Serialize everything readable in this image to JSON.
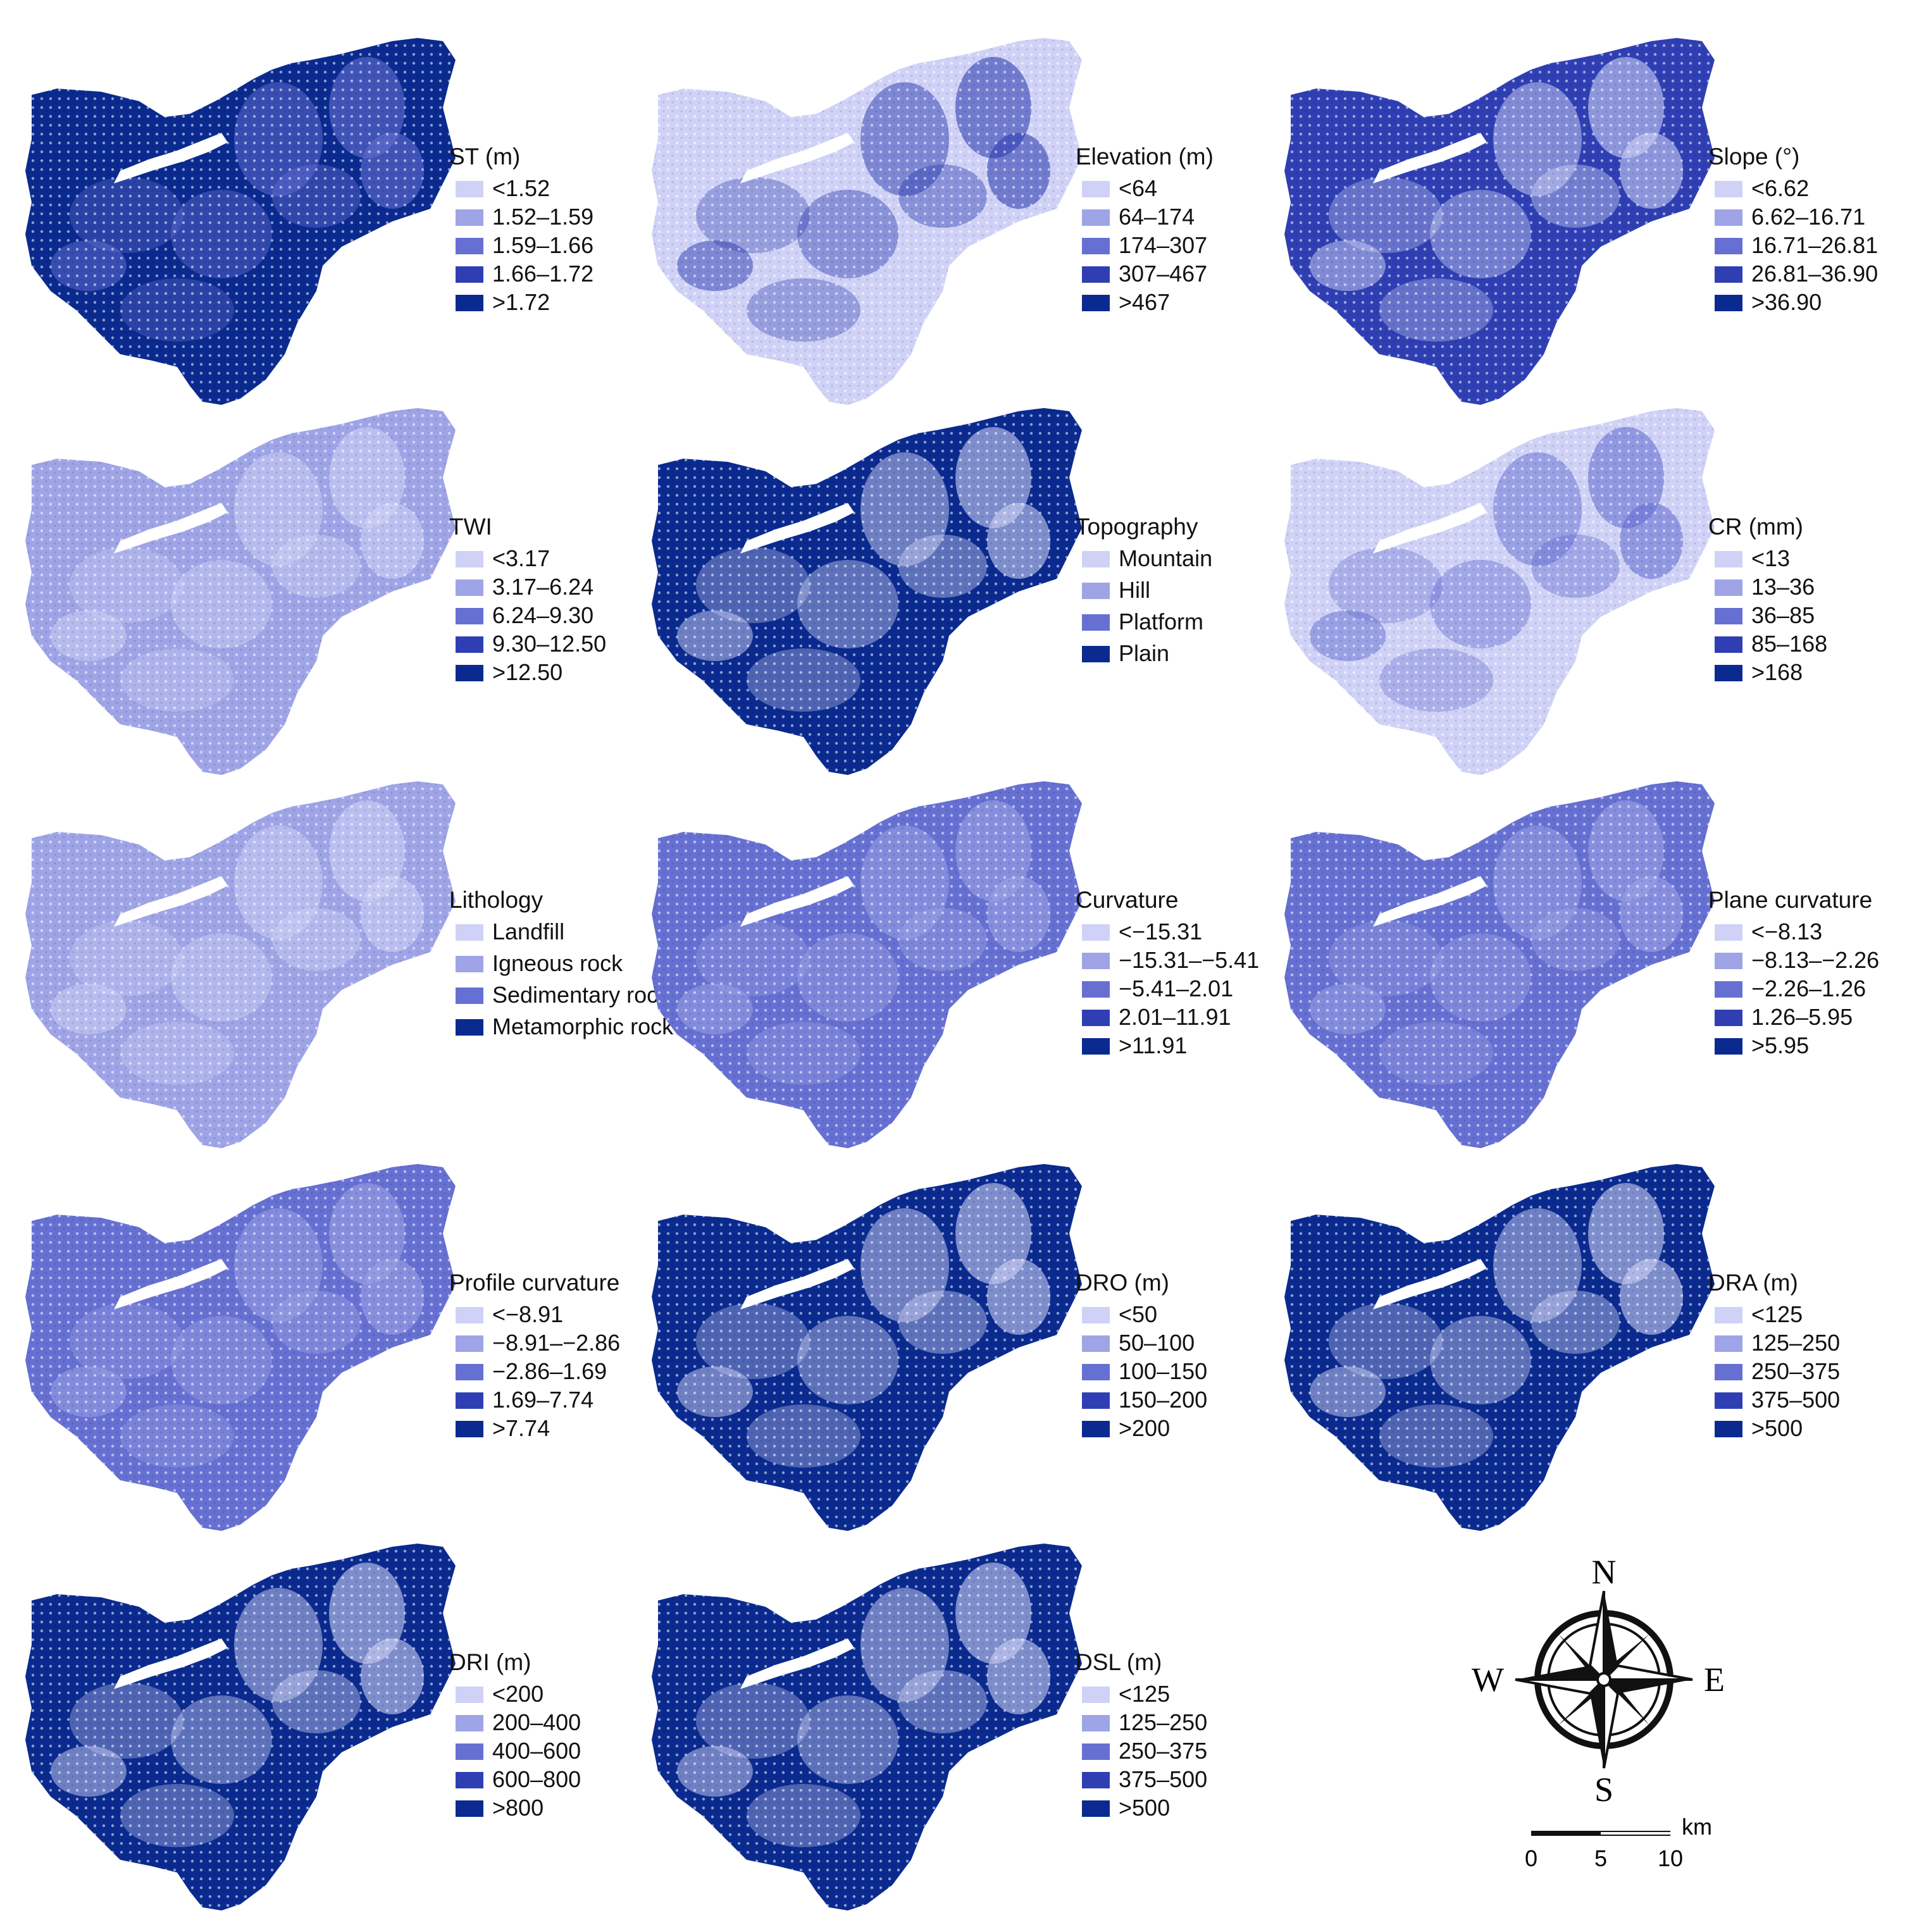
{
  "palette": {
    "c1": "#cfd2f6",
    "c2": "#9ea4e6",
    "c3": "#6670d2",
    "c4": "#2f3fb3",
    "c5": "#0a2a8f",
    "white": "#ffffff"
  },
  "panels": [
    {
      "title": "ST (m)",
      "fill": "c5",
      "texture": "c3",
      "legend": [
        "<1.52",
        "1.52–1.59",
        "1.59–1.66",
        "1.66–1.72",
        ">1.72"
      ]
    },
    {
      "title": "Elevation (m)",
      "fill": "c1",
      "texture": "c4",
      "legend": [
        "<64",
        "64–174",
        "174–307",
        "307–467",
        ">467"
      ]
    },
    {
      "title": "Slope (°)",
      "fill": "c4",
      "texture": "c1",
      "legend": [
        "<6.62",
        "6.62–16.71",
        "16.71–26.81",
        "26.81–36.90",
        ">36.90"
      ]
    },
    {
      "title": "TWI",
      "fill": "c2",
      "texture": "c1",
      "legend": [
        "<3.17",
        "3.17–6.24",
        "6.24–9.30",
        "9.30–12.50",
        ">12.50"
      ]
    },
    {
      "title": "Topography",
      "fill": "c5",
      "texture": "c1",
      "legend": [
        "Mountain",
        "Hill",
        "Platform",
        "Plain"
      ]
    },
    {
      "title": "CR (mm)",
      "fill": "c1",
      "texture": "c3",
      "legend": [
        "<13",
        "13–36",
        "36–85",
        "85–168",
        ">168"
      ]
    },
    {
      "title": "Lithology",
      "fill": "c2",
      "texture": "c1",
      "legend": [
        "Landfill",
        "Igneous rock",
        "Sedimentary rock",
        "Metamorphic rock"
      ]
    },
    {
      "title": "Curvature",
      "fill": "c3",
      "texture": "c2",
      "legend": [
        "<−15.31",
        "−15.31–−5.41",
        "−5.41–2.01",
        "2.01–11.91",
        ">11.91"
      ]
    },
    {
      "title": "Plane curvature",
      "fill": "c3",
      "texture": "c2",
      "legend": [
        "<−8.13",
        "−8.13–−2.26",
        "−2.26–1.26",
        "1.26–5.95",
        ">5.95"
      ]
    },
    {
      "title": "Profile curvature",
      "fill": "c3",
      "texture": "c2",
      "legend": [
        "<−8.91",
        "−8.91–−2.86",
        "−2.86–1.69",
        "1.69–7.74",
        ">7.74"
      ]
    },
    {
      "title": "DRO (m)",
      "fill": "c5",
      "texture": "c1",
      "legend": [
        "<50",
        "50–100",
        "100–150",
        "150–200",
        ">200"
      ]
    },
    {
      "title": "DRA (m)",
      "fill": "c5",
      "texture": "c1",
      "legend": [
        "<125",
        "125–250",
        "250–375",
        "375–500",
        ">500"
      ]
    },
    {
      "title": "DRI (m)",
      "fill": "c5",
      "texture": "c1",
      "legend": [
        "<200",
        "200–400",
        "400–600",
        "600–800",
        ">800"
      ]
    },
    {
      "title": "DSL (m)",
      "fill": "c5",
      "texture": "c1",
      "legend": [
        "<125",
        "125–250",
        "250–375",
        "375–500",
        ">500"
      ]
    }
  ],
  "compass": {
    "n": "N",
    "s": "S",
    "e": "E",
    "w": "W"
  },
  "scale_bar": {
    "unit": "km",
    "ticks": [
      "0",
      "5",
      "10"
    ]
  }
}
